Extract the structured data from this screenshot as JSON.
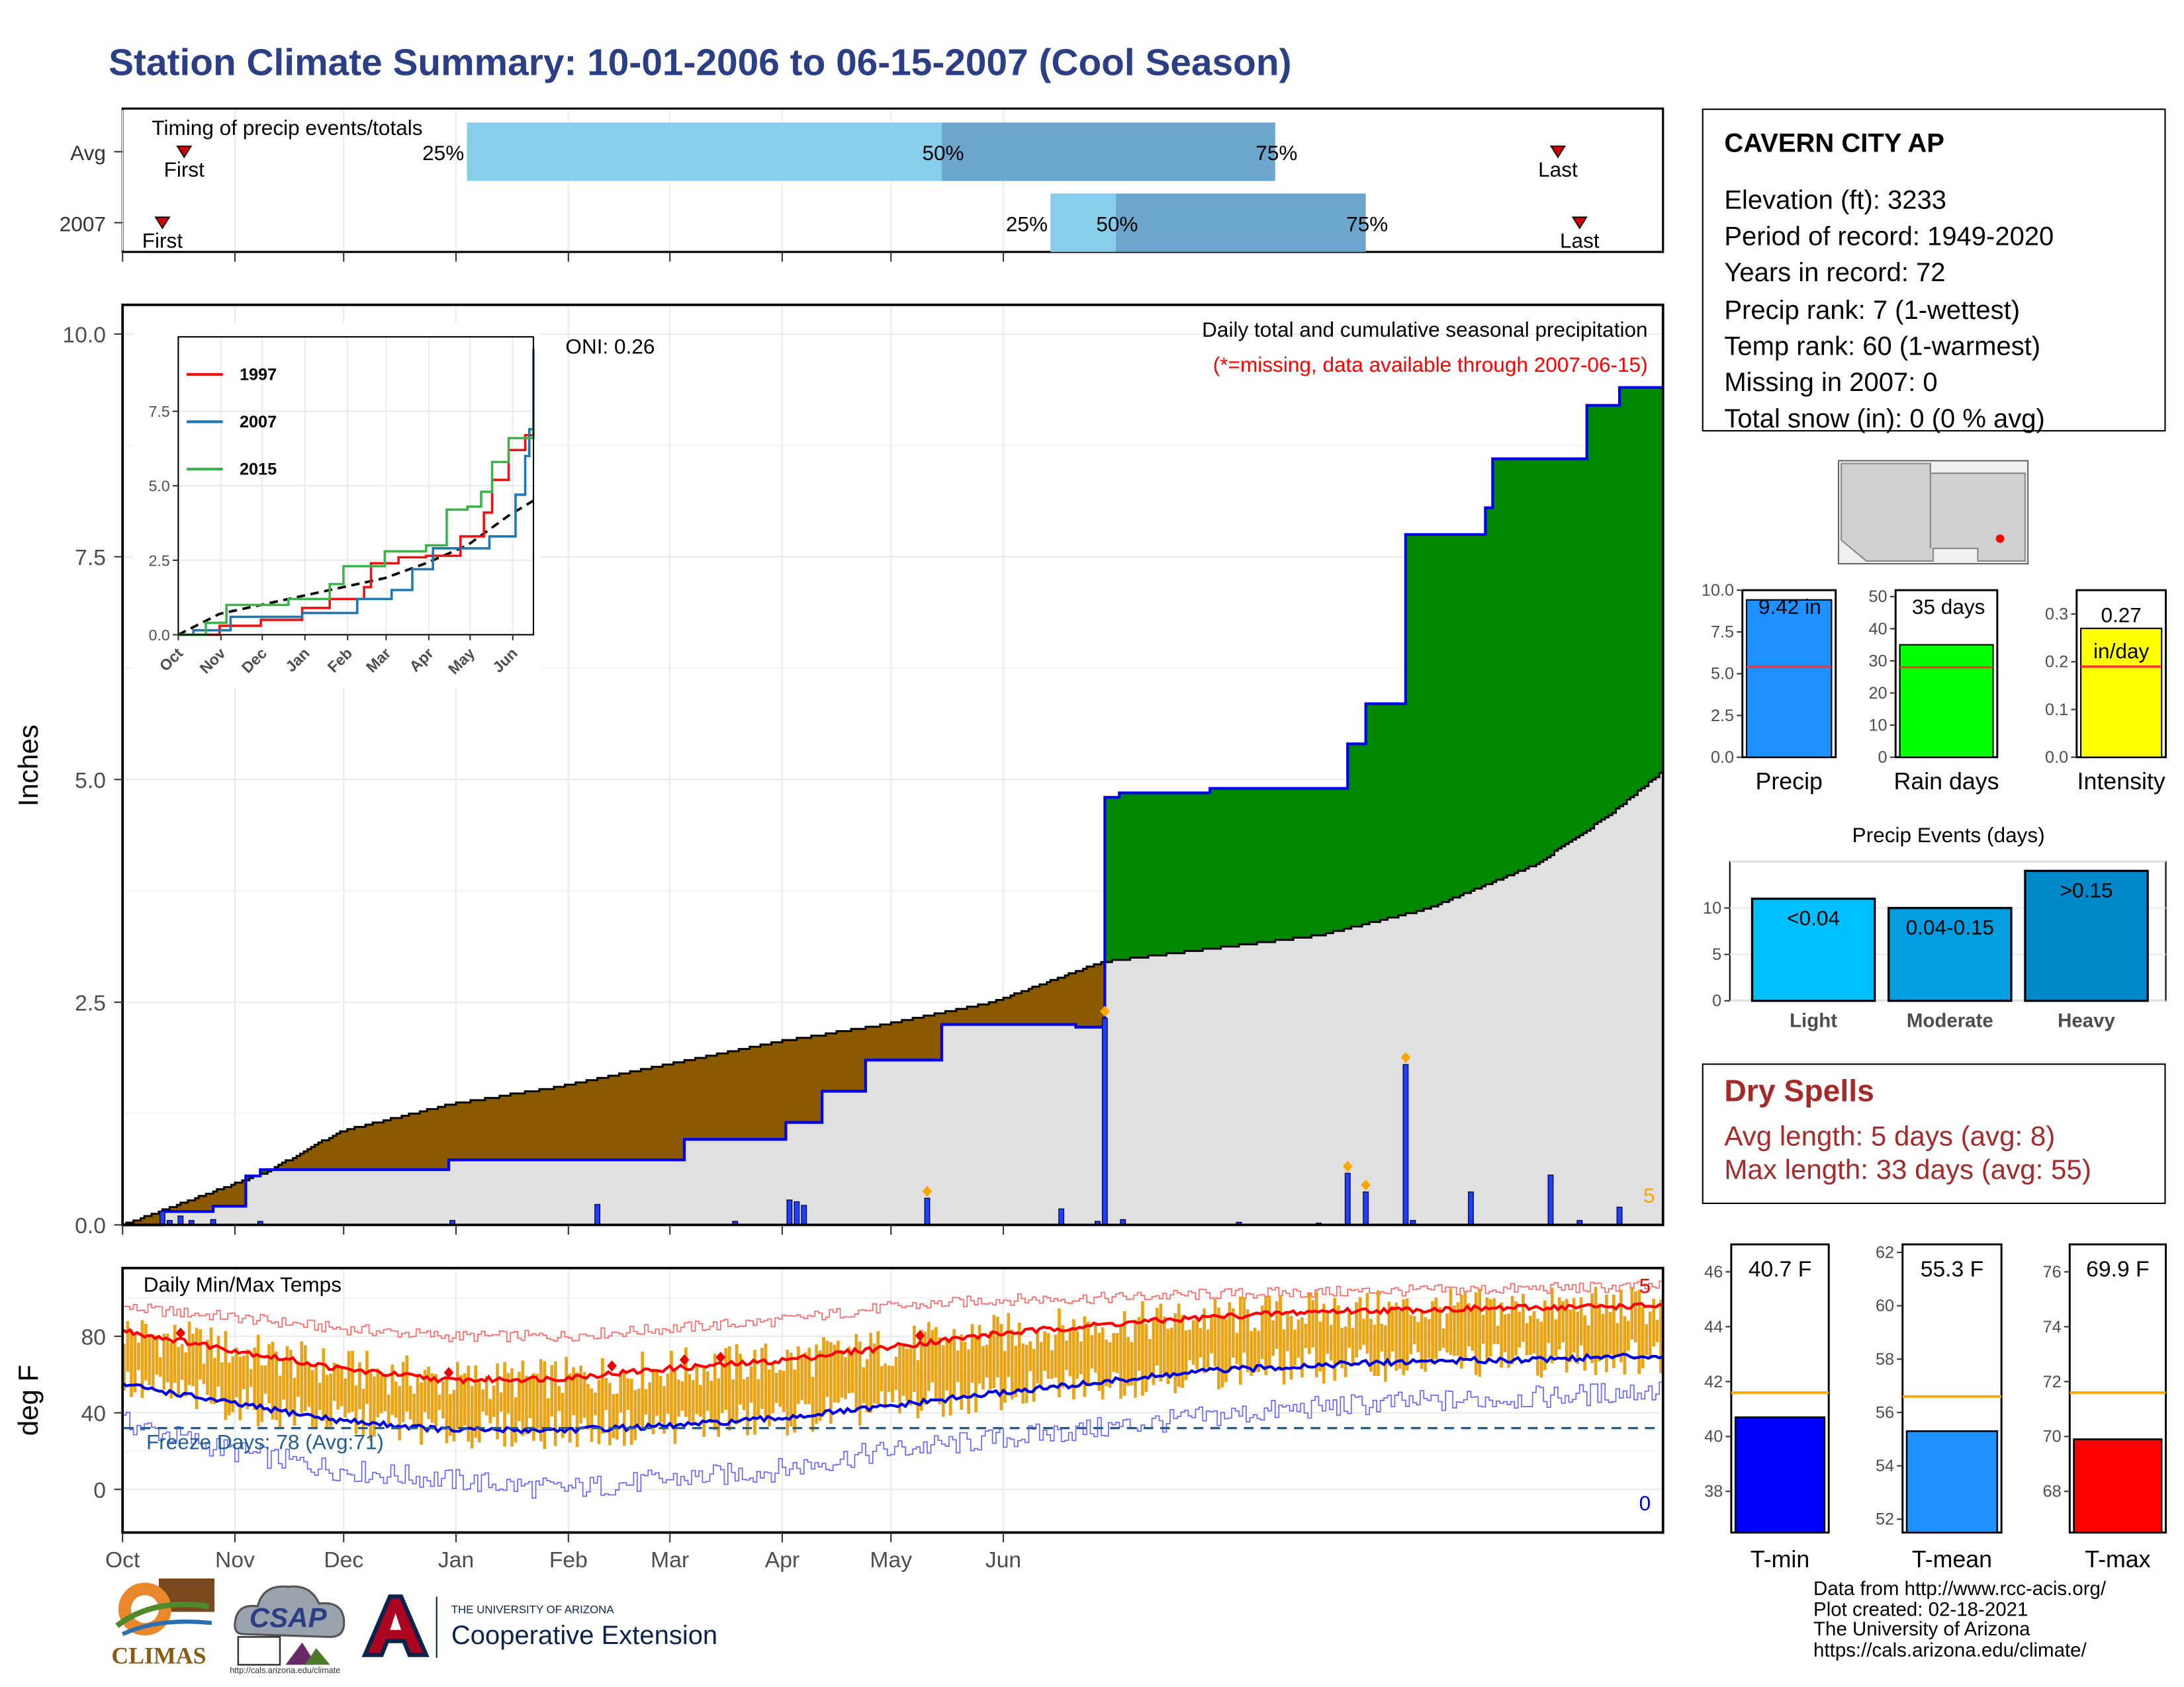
{
  "page": {
    "title": "Station Climate Summary: 10-01-2006 to 06-15-2007 (Cool Season)"
  },
  "station": {
    "name": "CAVERN CITY AP",
    "elevation": "Elevation (ft): 3233",
    "period": "Period of record: 1949-2020",
    "years": "Years in record: 72",
    "precip_rank": "Precip rank: 7 (1-wettest)",
    "temp_rank": "Temp rank: 60 (1-warmest)",
    "missing": "Missing in 2007: 0",
    "snow": "Total snow (in): 0 (0 % avg)"
  },
  "dry_spells": {
    "heading": "Dry Spells",
    "avg": "Avg length: 5 days (avg: 8)",
    "max": "Max length: 33 days (avg: 55)"
  },
  "credits": {
    "line1": "Data from http://www.rcc-acis.org/",
    "line2": "Plot created: 02-18-2021",
    "line3": "The University of Arizona",
    "line4": "https://cals.arizona.edu/climate/"
  },
  "logos": {
    "climas": "CLIMAS",
    "csap": "CSAP",
    "csap_url": "http://cals.arizona.edu/climate",
    "ua_small": "THE UNIVERSITY OF ARIZONA",
    "ua_big": "Cooperative Extension"
  },
  "colors": {
    "title": "#2b3f86",
    "observed_line": "#0000ee",
    "surplus": "#008800",
    "deficit": "#8b5a00",
    "normal_fill": "#e0e0e0",
    "daily_bar": "#1f3fff",
    "tmax": "#ff0000",
    "tmin": "#0000dd",
    "temp_bar": "#e8a317",
    "freeze": "#1f5e8f",
    "dry_spell": "#a52a2a",
    "light": "#00bfff",
    "moderate": "#009ee0",
    "heavy": "#0088c8"
  },
  "chart_data": [
    {
      "id": "timing",
      "type": "bar",
      "title": "Timing of precip events/totals",
      "rows": [
        {
          "label": "Avg",
          "first": "First",
          "last": "Last",
          "q25": "25%",
          "q50": "50%",
          "q75": "75%"
        },
        {
          "label": "2007",
          "first": "First",
          "last": "Last",
          "q25": "25%",
          "q50": "50%",
          "q75": "75%"
        }
      ],
      "markers_doy": [
        {
          "row": "Avg",
          "first": 17,
          "p25": 95,
          "p50": 226,
          "p75": 318,
          "last": 396
        },
        {
          "row": "2007",
          "first": 11,
          "p25": 256,
          "p50": 274,
          "p75": 343,
          "last": 402
        }
      ]
    },
    {
      "id": "precip",
      "type": "area",
      "title": "Daily total and cumulative seasonal precipitation",
      "subtitle": "(*=missing, data available through 2007-06-15)",
      "ylabel": "Inches",
      "ylim": [
        0,
        10.0
      ],
      "yticks": [
        "0.0",
        "2.5",
        "5.0",
        "7.5",
        "10.0"
      ],
      "xticks": [
        "Oct",
        "Nov",
        "Dec",
        "Jan",
        "Feb",
        "Mar",
        "Apr",
        "May",
        "Jun"
      ],
      "oni": "ONI: 0.26",
      "corner_count": "5",
      "cumulative_2007": [
        [
          0,
          0
        ],
        [
          11,
          0.15
        ],
        [
          25,
          0.21
        ],
        [
          34,
          0.55
        ],
        [
          38,
          0.62
        ],
        [
          62,
          0.62
        ],
        [
          90,
          0.73
        ],
        [
          130,
          0.73
        ],
        [
          155,
          0.96
        ],
        [
          170,
          0.96
        ],
        [
          183,
          1.15
        ],
        [
          193,
          1.5
        ],
        [
          205,
          1.85
        ],
        [
          225,
          1.85
        ],
        [
          226,
          2.25
        ],
        [
          250,
          2.25
        ],
        [
          262,
          2.25
        ],
        [
          263,
          2.22
        ],
        [
          270,
          2.22
        ],
        [
          271,
          4.8
        ],
        [
          275,
          4.85
        ],
        [
          285,
          4.85
        ],
        [
          300,
          4.9
        ],
        [
          337,
          4.9
        ],
        [
          338,
          5.4
        ],
        [
          343,
          5.85
        ],
        [
          353,
          5.85
        ],
        [
          354,
          7.75
        ],
        [
          375,
          7.75
        ],
        [
          376,
          8.05
        ],
        [
          378,
          8.6
        ],
        [
          403,
          8.6
        ],
        [
          404,
          9.2
        ],
        [
          412,
          9.2
        ],
        [
          413,
          9.4
        ],
        [
          425,
          9.4
        ]
      ],
      "normal_cumulative": [
        [
          0,
          0.0
        ],
        [
          20,
          0.3
        ],
        [
          40,
          0.6
        ],
        [
          60,
          1.05
        ],
        [
          90,
          1.35
        ],
        [
          120,
          1.55
        ],
        [
          150,
          1.8
        ],
        [
          180,
          2.05
        ],
        [
          210,
          2.25
        ],
        [
          240,
          2.5
        ],
        [
          270,
          2.95
        ],
        [
          300,
          3.1
        ],
        [
          330,
          3.25
        ],
        [
          360,
          3.55
        ],
        [
          390,
          4.05
        ],
        [
          410,
          4.6
        ],
        [
          425,
          5.1
        ]
      ],
      "daily_events": [
        [
          11,
          0.15
        ],
        [
          13,
          0.05
        ],
        [
          16,
          0.1
        ],
        [
          19,
          0.05
        ],
        [
          25,
          0.06
        ],
        [
          38,
          0.04
        ],
        [
          91,
          0.05
        ],
        [
          131,
          0.23
        ],
        [
          169,
          0.04
        ],
        [
          184,
          0.28
        ],
        [
          186,
          0.26
        ],
        [
          188,
          0.22
        ],
        [
          222,
          0.3
        ],
        [
          259,
          0.18
        ],
        [
          269,
          0.04
        ],
        [
          271,
          2.32
        ],
        [
          276,
          0.06
        ],
        [
          308,
          0.03
        ],
        [
          330,
          0.02
        ],
        [
          338,
          0.58
        ],
        [
          343,
          0.37
        ],
        [
          354,
          1.8
        ],
        [
          356,
          0.05
        ],
        [
          372,
          0.37
        ],
        [
          394,
          0.56
        ],
        [
          402,
          0.05
        ],
        [
          413,
          0.2
        ]
      ],
      "flagged_days": [
        222,
        271,
        338,
        343,
        354
      ]
    },
    {
      "id": "inset",
      "type": "line",
      "series": [
        {
          "name": "1997",
          "values": [
            [
              0,
              0
            ],
            [
              30,
              0.3
            ],
            [
              60,
              0.5
            ],
            [
              90,
              0.9
            ],
            [
              110,
              1.2
            ],
            [
              130,
              1.2
            ],
            [
              135,
              1.6
            ],
            [
              140,
              2.4
            ],
            [
              160,
              2.6
            ],
            [
              180,
              2.65
            ],
            [
              205,
              3.3
            ],
            [
              222,
              4.1
            ],
            [
              228,
              5.2
            ],
            [
              240,
              6.2
            ],
            [
              252,
              6.7
            ],
            [
              258,
              7.2
            ]
          ]
        },
        {
          "name": "2007",
          "values": [
            [
              0,
              0
            ],
            [
              11,
              0.15
            ],
            [
              38,
              0.6
            ],
            [
              90,
              0.73
            ],
            [
              130,
              1.2
            ],
            [
              155,
              1.5
            ],
            [
              170,
              2.2
            ],
            [
              185,
              2.9
            ],
            [
              226,
              3.3
            ],
            [
              240,
              3.3
            ],
            [
              245,
              4.7
            ],
            [
              252,
              6.0
            ],
            [
              255,
              6.9
            ],
            [
              258,
              9.6
            ]
          ]
        },
        {
          "name": "2015",
          "values": [
            [
              0,
              0
            ],
            [
              20,
              0.4
            ],
            [
              35,
              1.0
            ],
            [
              70,
              1.0
            ],
            [
              80,
              1.2
            ],
            [
              110,
              1.7
            ],
            [
              120,
              2.3
            ],
            [
              150,
              2.8
            ],
            [
              180,
              3.0
            ],
            [
              195,
              4.2
            ],
            [
              210,
              4.3
            ],
            [
              220,
              4.8
            ],
            [
              228,
              5.8
            ],
            [
              240,
              6.6
            ],
            [
              258,
              7.3
            ]
          ]
        }
      ],
      "average": [
        [
          0,
          0
        ],
        [
          30,
          0.7
        ],
        [
          60,
          1.0
        ],
        [
          90,
          1.3
        ],
        [
          120,
          1.6
        ],
        [
          150,
          1.9
        ],
        [
          180,
          2.4
        ],
        [
          210,
          3.0
        ],
        [
          240,
          4.0
        ],
        [
          258,
          4.5
        ]
      ],
      "ylim": [
        0,
        10.0
      ],
      "yticks": [
        "0.0",
        "2.5",
        "5.0",
        "7.5"
      ],
      "xticks": [
        "Oct",
        "Nov",
        "Dec",
        "Jan",
        "Feb",
        "Mar",
        "Apr",
        "May",
        "Jun"
      ]
    },
    {
      "id": "temps",
      "type": "bar",
      "title": "Daily Min/Max Temps",
      "ylabel": "deg F",
      "ylim": [
        -20,
        105
      ],
      "yticks": [
        "0",
        "40",
        "80"
      ],
      "xticks": [
        "Oct",
        "Nov",
        "Dec",
        "Jan",
        "Feb",
        "Mar",
        "Apr",
        "May",
        "Jun"
      ],
      "freeze": "Freeze Days: 78 (Avg:71)",
      "freeze_level": 32,
      "max_count": "5",
      "min_count": "0",
      "normal_max": [
        [
          0,
          83
        ],
        [
          30,
          73
        ],
        [
          60,
          63
        ],
        [
          90,
          57
        ],
        [
          120,
          58
        ],
        [
          150,
          63
        ],
        [
          180,
          67
        ],
        [
          210,
          74
        ],
        [
          240,
          81
        ],
        [
          270,
          86
        ],
        [
          300,
          90
        ],
        [
          330,
          93
        ],
        [
          360,
          94
        ],
        [
          390,
          95
        ],
        [
          425,
          96
        ]
      ],
      "normal_min": [
        [
          0,
          55
        ],
        [
          30,
          45
        ],
        [
          60,
          36
        ],
        [
          90,
          31
        ],
        [
          120,
          31
        ],
        [
          150,
          33
        ],
        [
          180,
          37
        ],
        [
          210,
          43
        ],
        [
          240,
          50
        ],
        [
          270,
          56
        ],
        [
          300,
          62
        ],
        [
          330,
          65
        ],
        [
          360,
          67
        ],
        [
          390,
          68
        ],
        [
          425,
          70
        ]
      ],
      "record_high": [
        [
          0,
          95
        ],
        [
          30,
          90
        ],
        [
          60,
          84
        ],
        [
          90,
          80
        ],
        [
          120,
          80
        ],
        [
          150,
          84
        ],
        [
          180,
          88
        ],
        [
          210,
          95
        ],
        [
          240,
          99
        ],
        [
          270,
          100
        ],
        [
          300,
          102
        ],
        [
          330,
          103
        ],
        [
          360,
          104
        ],
        [
          390,
          105
        ],
        [
          425,
          106
        ]
      ],
      "record_low": [
        [
          0,
          35
        ],
        [
          30,
          20
        ],
        [
          60,
          10
        ],
        [
          90,
          5
        ],
        [
          120,
          0
        ],
        [
          150,
          5
        ],
        [
          180,
          10
        ],
        [
          210,
          20
        ],
        [
          240,
          26
        ],
        [
          270,
          32
        ],
        [
          300,
          38
        ],
        [
          330,
          43
        ],
        [
          360,
          46
        ],
        [
          390,
          48
        ],
        [
          425,
          52
        ]
      ],
      "record_days": [
        16,
        90,
        135,
        155,
        165,
        220
      ]
    },
    {
      "id": "precip-summary",
      "type": "bar",
      "categories": [
        "Precip",
        "Rain days",
        "Intensity"
      ],
      "values": [
        9.42,
        35,
        0.27
      ],
      "labels": [
        "9.42 in",
        "35 days",
        "0.27",
        "in/day"
      ],
      "averages": [
        5.4,
        28,
        0.19
      ],
      "ylims": [
        [
          0,
          10
        ],
        [
          0,
          52
        ],
        [
          0,
          0.35
        ]
      ],
      "yticks": [
        [
          "0.0",
          "2.5",
          "5.0",
          "7.5",
          "10.0"
        ],
        [
          "0",
          "10",
          "20",
          "30",
          "40",
          "50"
        ],
        [
          "0.0",
          "0.1",
          "0.2",
          "0.3"
        ]
      ],
      "ytick_values": [
        [
          0,
          2.5,
          5.0,
          7.5,
          10.0
        ],
        [
          0,
          10,
          20,
          30,
          40,
          50
        ],
        [
          0,
          0.1,
          0.2,
          0.3
        ]
      ]
    },
    {
      "id": "events",
      "type": "bar",
      "title": "Precip Events (days)",
      "categories": [
        "Light",
        "Moderate",
        "Heavy"
      ],
      "bar_labels": [
        "<0.04",
        "0.04-0.15",
        ">0.15"
      ],
      "values": [
        11,
        10,
        14
      ],
      "ylim": [
        0,
        15
      ],
      "yticks": [
        "0",
        "5",
        "10"
      ]
    },
    {
      "id": "temp-summary",
      "type": "bar",
      "categories": [
        "T-min",
        "T-mean",
        "T-max"
      ],
      "values": [
        40.7,
        55.3,
        69.9
      ],
      "labels": [
        "40.7 F",
        "55.3 F",
        "69.9 F"
      ],
      "averages": [
        41.6,
        56.6,
        71.6
      ],
      "ylims": [
        [
          36.5,
          47
        ],
        [
          51.5,
          62.3
        ],
        [
          66.5,
          77
        ]
      ],
      "yticks": [
        [
          "38",
          "40",
          "42",
          "44",
          "46"
        ],
        [
          "52",
          "54",
          "56",
          "58",
          "60",
          "62"
        ],
        [
          "68",
          "70",
          "72",
          "74",
          "76"
        ]
      ],
      "ytick_values": [
        [
          38,
          40,
          42,
          44,
          46
        ],
        [
          52,
          54,
          56,
          58,
          60,
          62
        ],
        [
          68,
          70,
          72,
          74,
          76
        ]
      ]
    }
  ]
}
